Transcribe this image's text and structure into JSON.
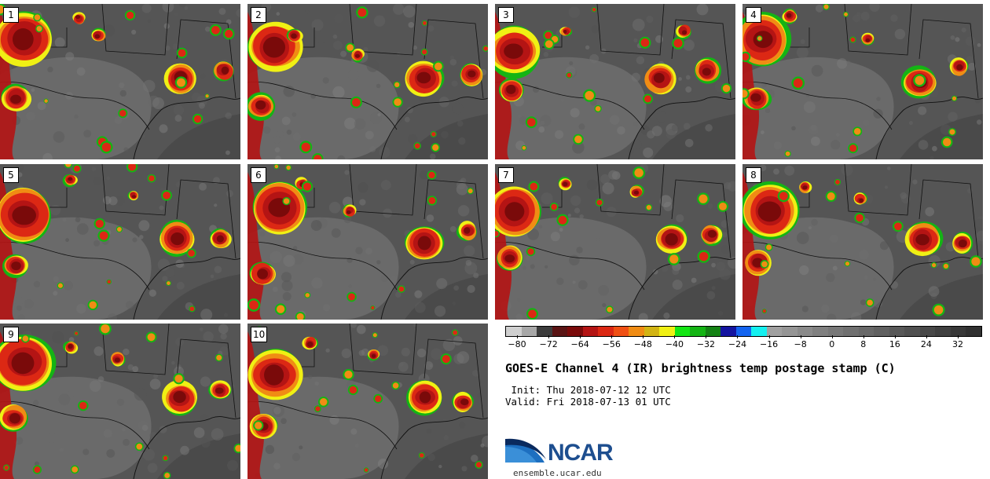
{
  "panels": [
    {
      "label": "1"
    },
    {
      "label": "2"
    },
    {
      "label": "3"
    },
    {
      "label": "4"
    },
    {
      "label": "5"
    },
    {
      "label": "6"
    },
    {
      "label": "7"
    },
    {
      "label": "8"
    },
    {
      "label": "9"
    },
    {
      "label": "10"
    }
  ],
  "colorbar": {
    "colors": [
      "#d0d0d0",
      "#a8a8a8",
      "#3c3c3c",
      "#5a1414",
      "#7a0a0a",
      "#b41414",
      "#dc2814",
      "#f05014",
      "#f08c14",
      "#d2b414",
      "#f0f014",
      "#14e614",
      "#14b414",
      "#148214",
      "#1414a0",
      "#1464f0",
      "#14f0f0",
      "#a0a0a0",
      "#959595",
      "#8a8a8a",
      "#808080",
      "#787878",
      "#707070",
      "#686868",
      "#606060",
      "#585858",
      "#505050",
      "#484848",
      "#404040",
      "#383838",
      "#303030"
    ],
    "ticks": [
      "−80",
      "−72",
      "−64",
      "−56",
      "−48",
      "−40",
      "−32",
      "−24",
      "−16",
      "−8",
      "0",
      "8",
      "16",
      "24",
      "32"
    ]
  },
  "title": "GOES-E Channel 4 (IR) brightness temp postage stamp (C)",
  "init": " Init: Thu 2018-07-12 12 UTC",
  "valid": "Valid: Fri 2018-07-13 01 UTC",
  "logo": {
    "text": "NCAR",
    "url": "ensemble.ucar.edu"
  }
}
